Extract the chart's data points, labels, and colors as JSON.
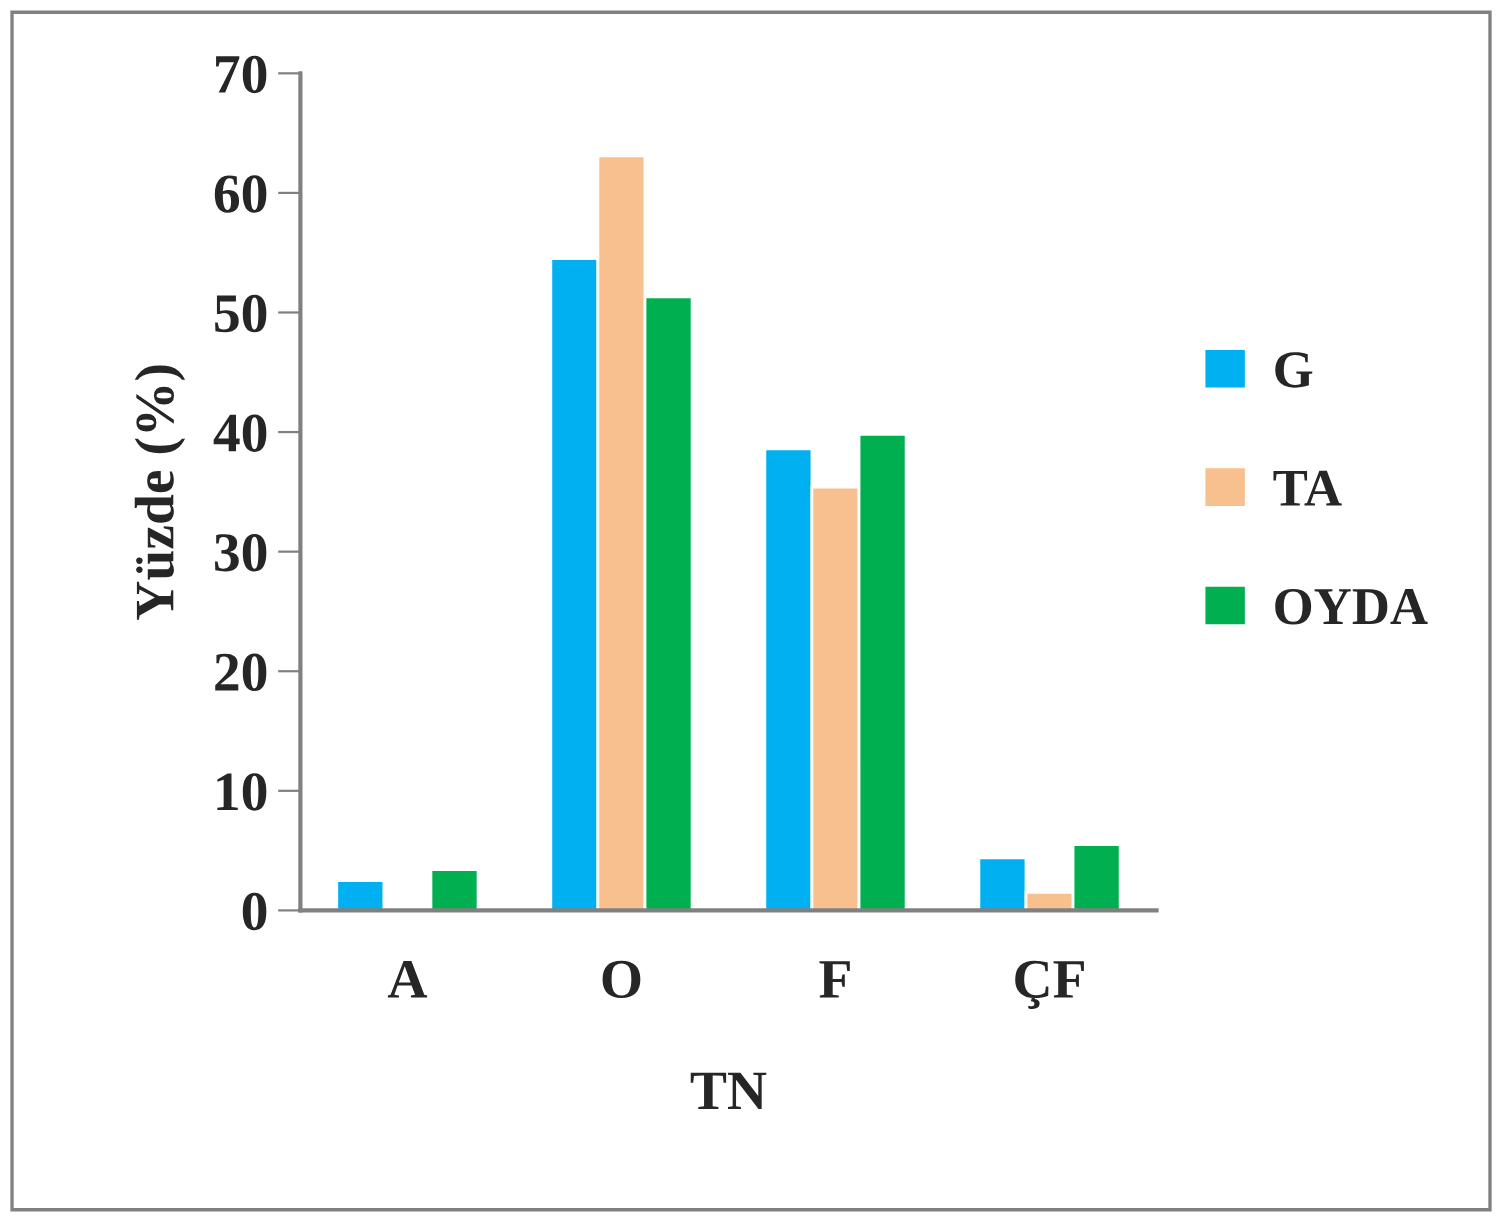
{
  "chart_data": {
    "type": "bar",
    "xlabel": "TN",
    "ylabel": "Yüzde (%)",
    "categories": [
      "A",
      "O",
      "F",
      "ÇF"
    ],
    "series": [
      {
        "name": "G",
        "color": "#00b0f0",
        "values": [
          2.5,
          54.5,
          38.6,
          4.4
        ]
      },
      {
        "name": "TA",
        "color": "#f8c08f",
        "values": [
          null,
          63.1,
          35.4,
          1.5
        ]
      },
      {
        "name": "OYDA",
        "color": "#00b050",
        "values": [
          3.4,
          51.3,
          39.8,
          5.5
        ]
      }
    ],
    "ylim": [
      0,
      70
    ],
    "yticks": [
      0,
      10,
      20,
      30,
      40,
      50,
      60,
      70
    ],
    "grid": false,
    "legend": "right"
  }
}
